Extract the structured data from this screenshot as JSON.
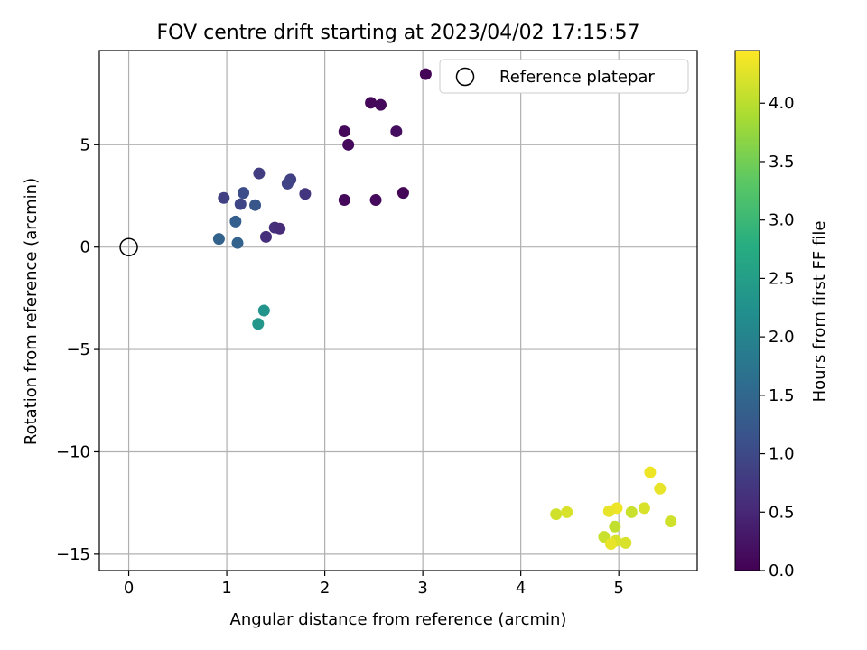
{
  "chart_data": {
    "type": "scatter",
    "title": "FOV centre drift starting at 2023/04/02 17:15:57",
    "xlabel": "Angular distance from reference (arcmin)",
    "ylabel": "Rotation from reference (arcmin)",
    "xlim": [
      -0.3,
      5.8
    ],
    "ylim": [
      -15.8,
      9.6
    ],
    "xticks": [
      0,
      1,
      2,
      3,
      4,
      5
    ],
    "yticks": [
      -15,
      -10,
      -5,
      0,
      5
    ],
    "grid": true,
    "legend": {
      "placement": "top-right",
      "entries": [
        {
          "label": "Reference platepar",
          "marker": "open-circle"
        }
      ]
    },
    "reference_point": {
      "x": 0,
      "y": 0
    },
    "colorbar": {
      "label": "Hours from first FF file",
      "colormap": "viridis",
      "range": [
        0,
        4.45
      ],
      "ticks": [
        0.0,
        0.5,
        1.0,
        1.5,
        2.0,
        2.5,
        3.0,
        3.5,
        4.0
      ]
    },
    "points": [
      {
        "x": 3.03,
        "y": 8.45,
        "t": 0.05
      },
      {
        "x": 2.47,
        "y": 7.05,
        "t": 0.08
      },
      {
        "x": 2.57,
        "y": 6.95,
        "t": 0.1
      },
      {
        "x": 2.2,
        "y": 5.65,
        "t": 0.1
      },
      {
        "x": 2.73,
        "y": 5.65,
        "t": 0.15
      },
      {
        "x": 2.24,
        "y": 5.0,
        "t": 0.12
      },
      {
        "x": 2.8,
        "y": 2.65,
        "t": 0.05
      },
      {
        "x": 2.2,
        "y": 2.3,
        "t": 0.1
      },
      {
        "x": 2.52,
        "y": 2.3,
        "t": 0.12
      },
      {
        "x": 1.33,
        "y": 3.6,
        "t": 0.8
      },
      {
        "x": 1.65,
        "y": 3.3,
        "t": 0.85
      },
      {
        "x": 1.62,
        "y": 3.1,
        "t": 0.9
      },
      {
        "x": 1.8,
        "y": 2.6,
        "t": 0.7
      },
      {
        "x": 1.17,
        "y": 2.65,
        "t": 1.05
      },
      {
        "x": 0.97,
        "y": 2.4,
        "t": 0.85
      },
      {
        "x": 1.14,
        "y": 2.1,
        "t": 0.95
      },
      {
        "x": 1.29,
        "y": 2.05,
        "t": 1.2
      },
      {
        "x": 1.09,
        "y": 1.25,
        "t": 1.35
      },
      {
        "x": 1.49,
        "y": 0.95,
        "t": 0.6
      },
      {
        "x": 1.54,
        "y": 0.9,
        "t": 0.55
      },
      {
        "x": 1.4,
        "y": 0.5,
        "t": 0.6
      },
      {
        "x": 0.92,
        "y": 0.4,
        "t": 1.4
      },
      {
        "x": 1.11,
        "y": 0.2,
        "t": 1.4
      },
      {
        "x": 1.38,
        "y": -3.1,
        "t": 2.3
      },
      {
        "x": 1.32,
        "y": -3.75,
        "t": 2.35
      },
      {
        "x": 5.32,
        "y": -11.0,
        "t": 4.35
      },
      {
        "x": 5.42,
        "y": -11.8,
        "t": 4.3
      },
      {
        "x": 4.98,
        "y": -12.75,
        "t": 4.35
      },
      {
        "x": 5.26,
        "y": -12.75,
        "t": 4.2
      },
      {
        "x": 4.9,
        "y": -12.9,
        "t": 4.3
      },
      {
        "x": 5.13,
        "y": -12.95,
        "t": 4.1
      },
      {
        "x": 4.36,
        "y": -13.05,
        "t": 4.15
      },
      {
        "x": 4.47,
        "y": -12.95,
        "t": 4.2
      },
      {
        "x": 5.53,
        "y": -13.4,
        "t": 4.15
      },
      {
        "x": 4.96,
        "y": -13.65,
        "t": 4.05
      },
      {
        "x": 4.85,
        "y": -14.15,
        "t": 4.1
      },
      {
        "x": 4.97,
        "y": -14.35,
        "t": 4.2
      },
      {
        "x": 4.92,
        "y": -14.5,
        "t": 4.3
      },
      {
        "x": 5.07,
        "y": -14.45,
        "t": 4.2
      }
    ]
  }
}
